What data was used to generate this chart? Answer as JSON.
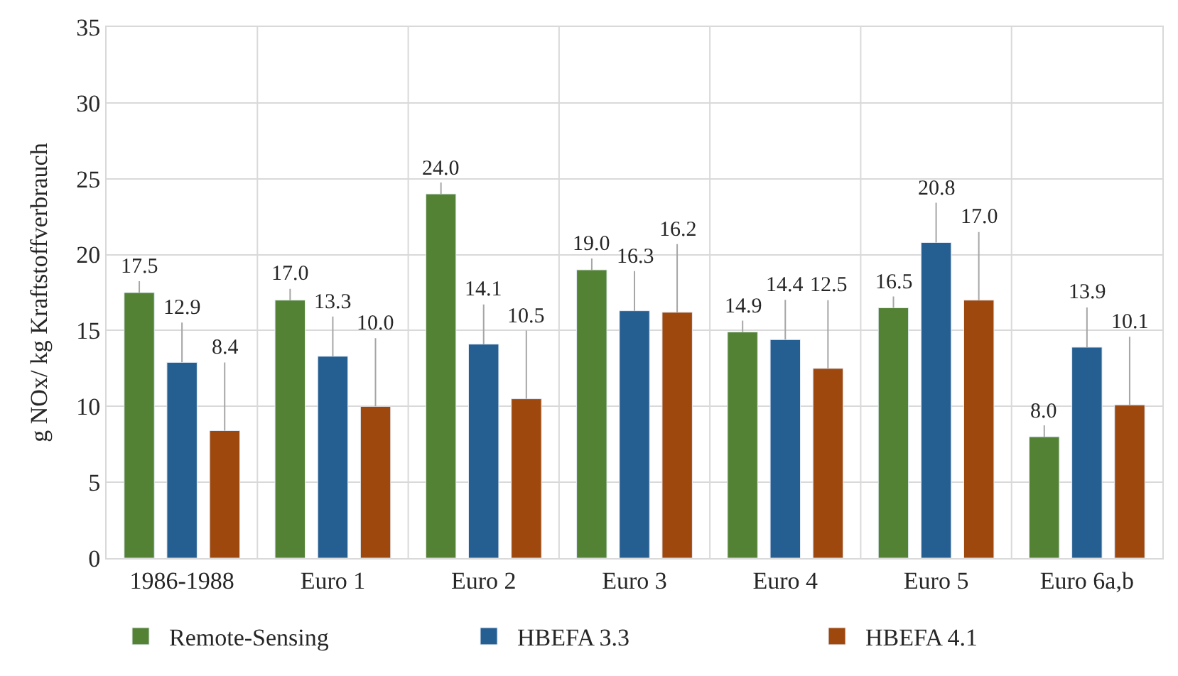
{
  "chart_data": {
    "type": "bar",
    "ylabel": "g NOx/ kg Kraftstoffverbrauch",
    "categories": [
      "1986-1988",
      "Euro 1",
      "Euro 2",
      "Euro 3",
      "Euro 4",
      "Euro 5",
      "Euro 6a,b"
    ],
    "series": [
      {
        "name": "Remote-Sensing",
        "color": "#548235",
        "values": [
          17.5,
          17.0,
          24.0,
          19.0,
          14.9,
          16.5,
          8.0
        ],
        "value_labels": [
          "17.5",
          "17.0",
          "24.0",
          "19.0",
          "14.9",
          "16.5",
          "8.0"
        ]
      },
      {
        "name": "HBEFA 3.3",
        "color": "#255e91",
        "values": [
          12.9,
          13.3,
          14.1,
          16.3,
          14.4,
          20.8,
          13.9
        ],
        "value_labels": [
          "12.9",
          "13.3",
          "14.1",
          "16.3",
          "14.4",
          "20.8",
          "13.9"
        ]
      },
      {
        "name": "HBEFA 4.1",
        "color": "#9e480e",
        "values": [
          8.4,
          10.0,
          10.5,
          16.2,
          12.5,
          17.0,
          10.1
        ],
        "value_labels": [
          "8.4",
          "10.0",
          "10.5",
          "16.2",
          "12.5",
          "17.0",
          "10.1"
        ]
      }
    ],
    "ylim": [
      0,
      35
    ],
    "yticks": [
      0,
      5,
      10,
      15,
      20,
      25,
      30,
      35
    ],
    "grid": true,
    "legend": "bottom"
  }
}
